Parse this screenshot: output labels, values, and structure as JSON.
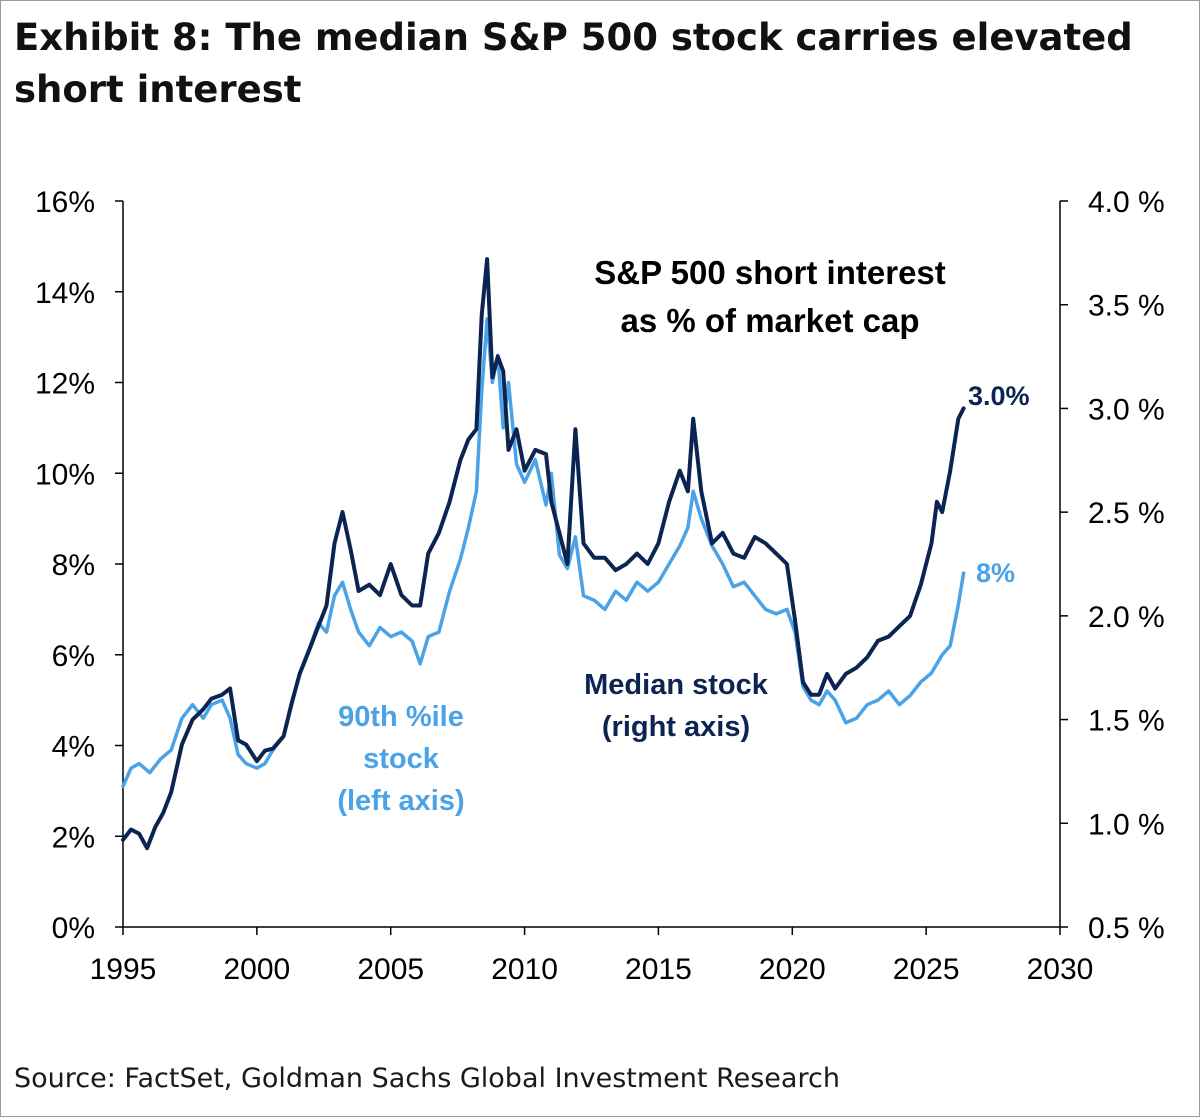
{
  "title": "Exhibit 8: The median S&P 500 stock carries elevated short interest",
  "source": "Source: FactSet, Goldman Sachs Global Investment Research",
  "colors": {
    "median": "#0c2451",
    "p90": "#4aa3e6",
    "axis": "#000000"
  },
  "chart_data": {
    "type": "line",
    "title": "S&P 500 short interest as % of market cap",
    "title_lines": [
      "S&P 500 short interest",
      "as % of market cap"
    ],
    "xlim": [
      1995,
      2030
    ],
    "x_ticks": [
      "1995",
      "2000",
      "2005",
      "2010",
      "2015",
      "2020",
      "2025",
      "2030"
    ],
    "y_left": {
      "lim": [
        0,
        16
      ],
      "ticks": [
        "0%",
        "2%",
        "4%",
        "6%",
        "8%",
        "10%",
        "12%",
        "14%",
        "16%"
      ]
    },
    "y_right": {
      "lim": [
        0.5,
        4.0
      ],
      "ticks": [
        "0.5 %",
        "1.0 %",
        "1.5 %",
        "2.0 %",
        "2.5 %",
        "3.0 %",
        "3.5 %",
        "4.0 %"
      ]
    },
    "grid": false,
    "series": [
      {
        "key": "p90",
        "label_lines": [
          "90th %ile",
          "stock",
          "(left axis)"
        ],
        "axis": "left",
        "end_label": "8%",
        "x": [
          1995.0,
          1995.3,
          1995.6,
          1996.0,
          1996.4,
          1996.8,
          1997.2,
          1997.6,
          1998.0,
          1998.3,
          1998.7,
          1999.0,
          1999.3,
          1999.6,
          2000.0,
          2000.3,
          2000.6,
          2001.0,
          2001.3,
          2001.6,
          2002.0,
          2002.3,
          2002.6,
          2002.9,
          2003.2,
          2003.5,
          2003.8,
          2004.2,
          2004.6,
          2005.0,
          2005.4,
          2005.8,
          2006.1,
          2006.4,
          2006.8,
          2007.2,
          2007.6,
          2007.9,
          2008.2,
          2008.4,
          2008.6,
          2008.8,
          2009.0,
          2009.2,
          2009.4,
          2009.7,
          2010.0,
          2010.4,
          2010.8,
          2011.0,
          2011.3,
          2011.6,
          2011.9,
          2012.2,
          2012.6,
          2013.0,
          2013.4,
          2013.8,
          2014.2,
          2014.6,
          2015.0,
          2015.4,
          2015.8,
          2016.1,
          2016.3,
          2016.6,
          2017.0,
          2017.4,
          2017.8,
          2018.2,
          2018.6,
          2019.0,
          2019.4,
          2019.8,
          2020.1,
          2020.4,
          2020.7,
          2021.0,
          2021.3,
          2021.6,
          2022.0,
          2022.4,
          2022.8,
          2023.2,
          2023.6,
          2024.0,
          2024.4,
          2024.8,
          2025.2,
          2025.6,
          2025.9,
          2026.2,
          2026.4
        ],
        "y": [
          3.1,
          3.5,
          3.6,
          3.4,
          3.7,
          3.9,
          4.6,
          4.9,
          4.6,
          4.9,
          5.0,
          4.6,
          3.8,
          3.6,
          3.5,
          3.6,
          3.9,
          4.2,
          4.9,
          5.6,
          6.2,
          6.7,
          6.5,
          7.3,
          7.6,
          7.0,
          6.5,
          6.2,
          6.6,
          6.4,
          6.5,
          6.3,
          5.8,
          6.4,
          6.5,
          7.4,
          8.1,
          8.8,
          9.6,
          11.8,
          13.4,
          12.0,
          12.6,
          11.0,
          12.0,
          10.2,
          9.8,
          10.3,
          9.3,
          10.0,
          8.2,
          7.9,
          8.6,
          7.3,
          7.2,
          7.0,
          7.4,
          7.2,
          7.6,
          7.4,
          7.6,
          8.0,
          8.4,
          8.8,
          9.6,
          9.0,
          8.4,
          8.0,
          7.5,
          7.6,
          7.3,
          7.0,
          6.9,
          7.0,
          6.5,
          5.3,
          5.0,
          4.9,
          5.2,
          5.0,
          4.5,
          4.6,
          4.9,
          5.0,
          5.2,
          4.9,
          5.1,
          5.4,
          5.6,
          6.0,
          6.2,
          7.1,
          7.8
        ]
      },
      {
        "key": "median",
        "label_lines": [
          "Median stock",
          "(right axis)"
        ],
        "axis": "right",
        "end_label": "3.0%",
        "x": [
          1995.0,
          1995.3,
          1995.6,
          1995.9,
          1996.2,
          1996.5,
          1996.8,
          1997.2,
          1997.6,
          1998.0,
          1998.3,
          1998.7,
          1999.0,
          1999.3,
          1999.6,
          2000.0,
          2000.3,
          2000.6,
          2001.0,
          2001.3,
          2001.6,
          2002.0,
          2002.3,
          2002.6,
          2002.9,
          2003.2,
          2003.5,
          2003.8,
          2004.2,
          2004.6,
          2005.0,
          2005.4,
          2005.8,
          2006.1,
          2006.4,
          2006.8,
          2007.2,
          2007.6,
          2007.9,
          2008.2,
          2008.4,
          2008.6,
          2008.8,
          2009.0,
          2009.2,
          2009.4,
          2009.7,
          2010.0,
          2010.4,
          2010.8,
          2011.0,
          2011.3,
          2011.6,
          2011.9,
          2012.2,
          2012.6,
          2013.0,
          2013.4,
          2013.8,
          2014.2,
          2014.6,
          2015.0,
          2015.4,
          2015.8,
          2016.1,
          2016.3,
          2016.6,
          2017.0,
          2017.4,
          2017.8,
          2018.2,
          2018.6,
          2019.0,
          2019.4,
          2019.8,
          2020.1,
          2020.4,
          2020.7,
          2021.0,
          2021.3,
          2021.6,
          2022.0,
          2022.4,
          2022.8,
          2023.2,
          2023.6,
          2024.0,
          2024.4,
          2024.8,
          2025.2,
          2025.4,
          2025.6,
          2025.9,
          2026.2,
          2026.4
        ],
        "y": [
          0.92,
          0.97,
          0.95,
          0.88,
          0.98,
          1.05,
          1.15,
          1.38,
          1.5,
          1.55,
          1.6,
          1.62,
          1.65,
          1.4,
          1.38,
          1.3,
          1.35,
          1.36,
          1.42,
          1.58,
          1.72,
          1.85,
          1.95,
          2.05,
          2.35,
          2.5,
          2.32,
          2.12,
          2.15,
          2.1,
          2.25,
          2.1,
          2.05,
          2.05,
          2.3,
          2.4,
          2.55,
          2.75,
          2.85,
          2.9,
          3.45,
          3.72,
          3.15,
          3.25,
          3.18,
          2.8,
          2.9,
          2.7,
          2.8,
          2.78,
          2.55,
          2.4,
          2.25,
          2.9,
          2.35,
          2.28,
          2.28,
          2.22,
          2.25,
          2.3,
          2.25,
          2.35,
          2.55,
          2.7,
          2.6,
          2.95,
          2.6,
          2.35,
          2.4,
          2.3,
          2.28,
          2.38,
          2.35,
          2.3,
          2.25,
          1.98,
          1.68,
          1.62,
          1.62,
          1.72,
          1.65,
          1.72,
          1.75,
          1.8,
          1.88,
          1.9,
          1.95,
          2.0,
          2.15,
          2.35,
          2.55,
          2.5,
          2.7,
          2.95,
          3.0
        ]
      }
    ]
  }
}
